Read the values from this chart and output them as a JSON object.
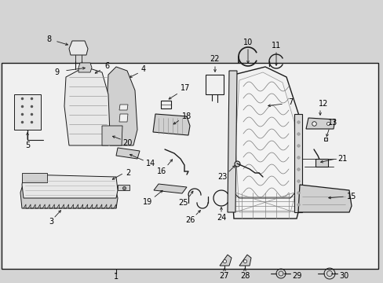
{
  "bg_color": "#d4d4d4",
  "box_color": "#e8e8e8",
  "line_color": "#1a1a1a",
  "text_color": "#000000",
  "fig_width": 4.89,
  "fig_height": 3.6,
  "dpi": 100,
  "label_fs": 7.0,
  "label_fs_sm": 6.5
}
